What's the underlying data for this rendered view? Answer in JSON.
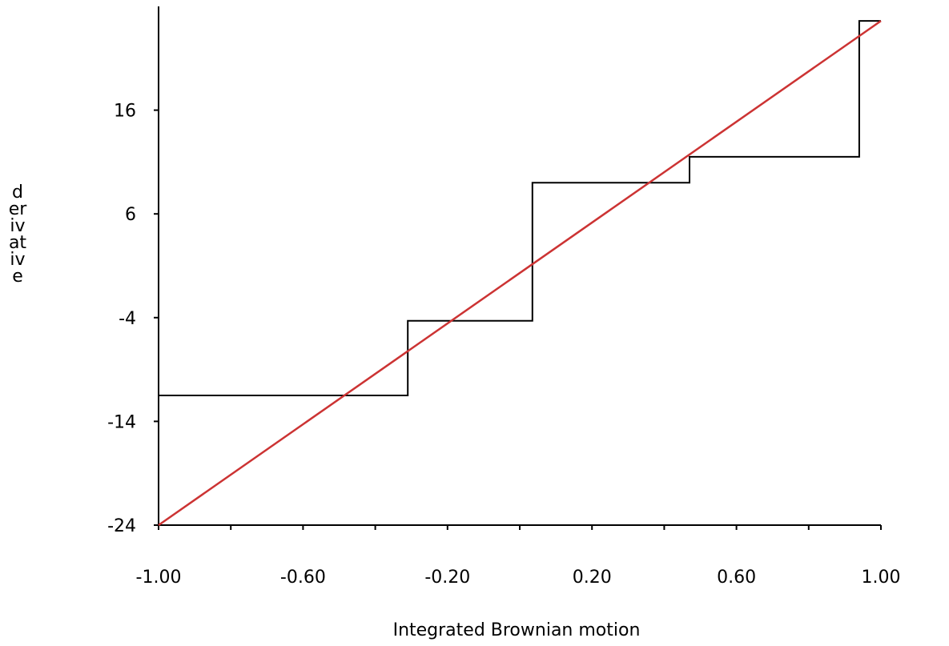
{
  "chart_data": {
    "type": "line",
    "title": "",
    "xlabel": "Integrated Brownian motion",
    "ylabel": "derivative",
    "xlim": [
      -1.0,
      1.0
    ],
    "ylim": [
      -24,
      26
    ],
    "x_ticks": [
      -1.0,
      -0.8,
      -0.6,
      -0.4,
      -0.2,
      0.0,
      0.2,
      0.4,
      0.6,
      0.8,
      1.0
    ],
    "x_tick_labels": [
      "-1.00",
      "",
      "-0.60",
      "",
      "-0.20",
      "",
      "0.20",
      "",
      "0.60",
      "",
      "1.00"
    ],
    "y_ticks": [
      -24,
      -14,
      -4,
      6,
      16
    ],
    "y_tick_labels": [
      "-24",
      "-14",
      "-4",
      "6",
      "16"
    ],
    "grid": false,
    "legend": "none",
    "series": [
      {
        "kind": "step",
        "color": "#000000",
        "points": [
          [
            -1.0,
            -24.0
          ],
          [
            -1.0,
            -11.5
          ],
          [
            -0.31,
            -11.5
          ],
          [
            -0.31,
            -4.3
          ],
          [
            0.035,
            -4.3
          ],
          [
            0.035,
            9.0
          ],
          [
            0.47,
            9.0
          ],
          [
            0.47,
            11.5
          ],
          [
            0.94,
            11.5
          ],
          [
            0.94,
            24.6
          ],
          [
            1.0,
            24.6
          ]
        ]
      },
      {
        "kind": "line",
        "color": "#cc3333",
        "points": [
          [
            -1.0,
            -24.0
          ],
          [
            1.0,
            24.6
          ]
        ]
      }
    ]
  }
}
